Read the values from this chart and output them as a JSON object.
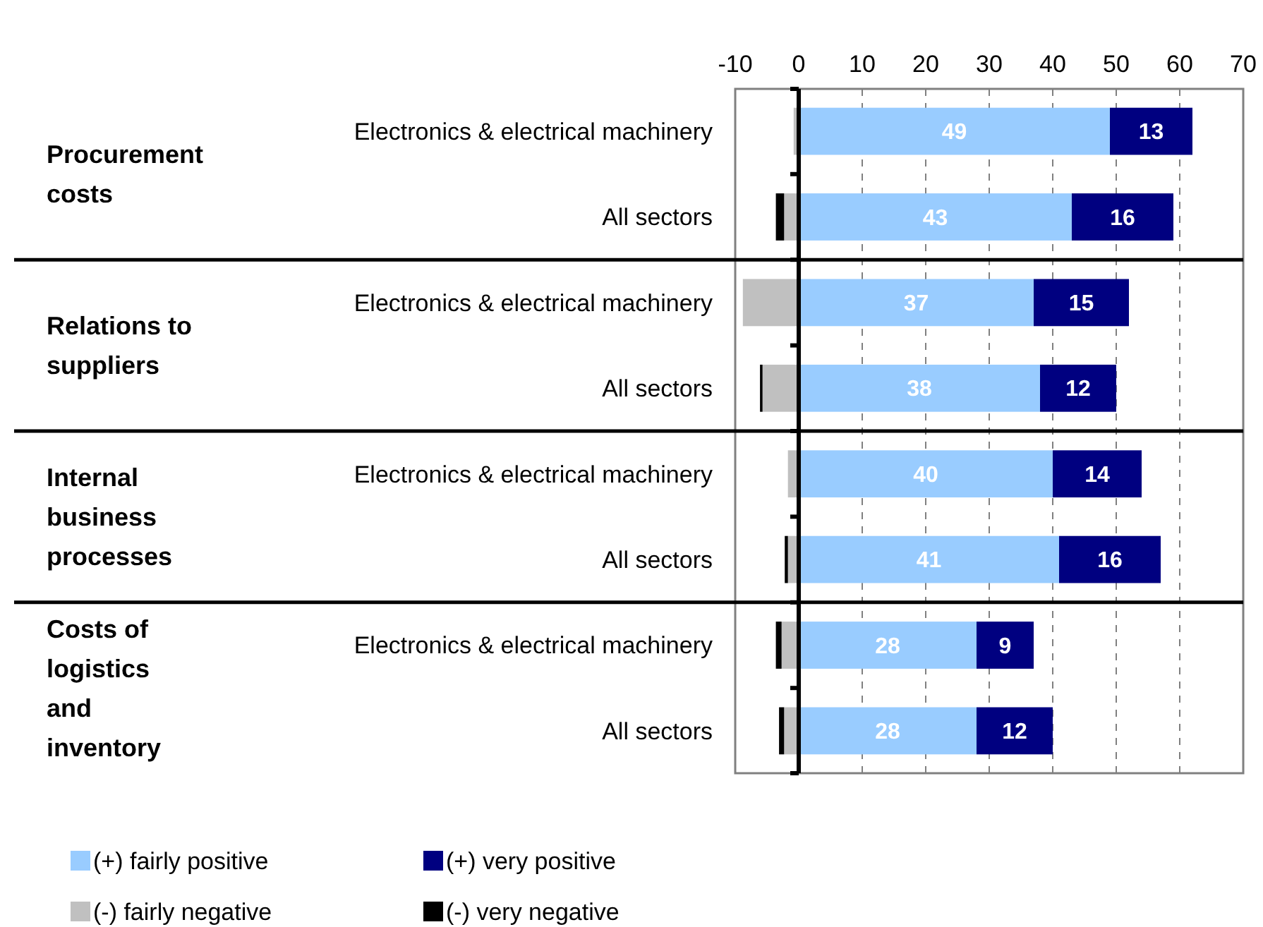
{
  "chart_data": {
    "type": "bar",
    "orientation": "horizontal",
    "stacked": true,
    "categories": [
      "Electronics & electrical machinery",
      "All sectors",
      "Electronics & electrical machinery",
      "All sectors",
      "Electronics & electrical machinery",
      "All sectors",
      "Electronics & electrical machinery",
      "All sectors"
    ],
    "series": [
      {
        "name": "(+) fairly positive",
        "color": "#99ccff",
        "values": [
          49,
          43,
          37,
          38,
          40,
          41,
          28,
          28
        ],
        "value_labels": [
          "49",
          "43",
          "37",
          "38",
          "40",
          "41",
          "28",
          "28"
        ]
      },
      {
        "name": "(+) very positive",
        "color": "#000080",
        "values": [
          13,
          16,
          15,
          12,
          14,
          16,
          9,
          12
        ],
        "value_labels": [
          "13",
          "16",
          "15",
          "12",
          "14",
          "16",
          "9",
          "12"
        ]
      },
      {
        "name": "(-) fairly negative",
        "color": "#c0c0c0",
        "values": [
          -0.8,
          -2.3,
          -8.8,
          -5.7,
          -1.7,
          -1.7,
          -2.7,
          -2.3
        ]
      },
      {
        "name": "(-) very negative",
        "color": "#000000",
        "values": [
          0,
          -1.3,
          0,
          -0.4,
          0,
          -0.5,
          -0.9,
          -0.8
        ]
      }
    ],
    "annotations": [
      "Procurement costs",
      "Relations to suppliers",
      "Internal business processes",
      "Costs of logistics and inventory"
    ],
    "xlim": [
      -10,
      70
    ],
    "xticks": [
      -10,
      0,
      10,
      20,
      30,
      40,
      50,
      60,
      70
    ],
    "grid": "x",
    "legend": "bottom left"
  }
}
